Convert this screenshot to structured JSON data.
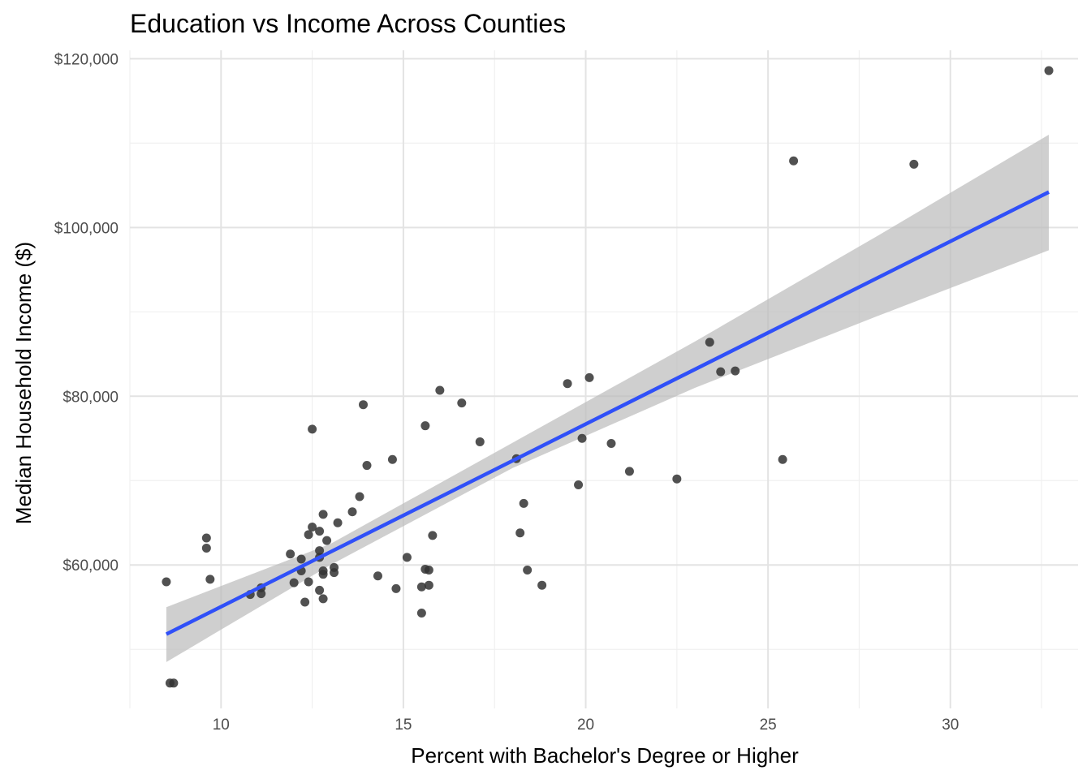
{
  "chart_data": {
    "type": "scatter",
    "title": "Education vs Income Across Counties",
    "xlabel": "Percent with Bachelor's Degree or Higher",
    "ylabel": "Median Household Income ($)",
    "xlim": [
      7.5,
      33.5
    ],
    "ylim": [
      43000,
      121000
    ],
    "x_ticks": [
      10,
      15,
      20,
      25,
      30
    ],
    "x_tick_labels": [
      "10",
      "15",
      "20",
      "25",
      "30"
    ],
    "y_ticks": [
      60000,
      80000,
      100000,
      120000
    ],
    "y_tick_labels": [
      "$60,000",
      "$80,000",
      "$100,000",
      "$120,000"
    ],
    "grid": true,
    "legend": "none",
    "colors": {
      "points": "#333333",
      "fit_line": "#3050f8",
      "confidence_band": "#bdbdbd"
    },
    "points": [
      {
        "x": 8.5,
        "y": 58000
      },
      {
        "x": 8.6,
        "y": 46000
      },
      {
        "x": 8.7,
        "y": 46000
      },
      {
        "x": 9.6,
        "y": 63200
      },
      {
        "x": 9.6,
        "y": 62000
      },
      {
        "x": 9.7,
        "y": 58300
      },
      {
        "x": 10.8,
        "y": 56500
      },
      {
        "x": 11.1,
        "y": 57300
      },
      {
        "x": 11.1,
        "y": 56600
      },
      {
        "x": 11.9,
        "y": 61300
      },
      {
        "x": 12.0,
        "y": 57900
      },
      {
        "x": 12.2,
        "y": 60700
      },
      {
        "x": 12.2,
        "y": 59300
      },
      {
        "x": 12.3,
        "y": 55600
      },
      {
        "x": 12.4,
        "y": 63600
      },
      {
        "x": 12.4,
        "y": 58000
      },
      {
        "x": 12.5,
        "y": 76100
      },
      {
        "x": 12.5,
        "y": 64500
      },
      {
        "x": 12.7,
        "y": 64000
      },
      {
        "x": 12.7,
        "y": 61700
      },
      {
        "x": 12.7,
        "y": 60900
      },
      {
        "x": 12.7,
        "y": 57000
      },
      {
        "x": 12.8,
        "y": 66000
      },
      {
        "x": 12.8,
        "y": 59300
      },
      {
        "x": 12.8,
        "y": 58900
      },
      {
        "x": 12.8,
        "y": 56000
      },
      {
        "x": 12.9,
        "y": 62900
      },
      {
        "x": 13.1,
        "y": 59700
      },
      {
        "x": 13.1,
        "y": 59100
      },
      {
        "x": 13.2,
        "y": 65000
      },
      {
        "x": 13.6,
        "y": 66300
      },
      {
        "x": 13.8,
        "y": 68100
      },
      {
        "x": 13.9,
        "y": 79000
      },
      {
        "x": 14.0,
        "y": 71800
      },
      {
        "x": 14.3,
        "y": 58700
      },
      {
        "x": 14.7,
        "y": 72500
      },
      {
        "x": 14.8,
        "y": 57200
      },
      {
        "x": 15.1,
        "y": 60900
      },
      {
        "x": 15.5,
        "y": 57400
      },
      {
        "x": 15.5,
        "y": 54300
      },
      {
        "x": 15.6,
        "y": 76500
      },
      {
        "x": 15.6,
        "y": 59500
      },
      {
        "x": 15.7,
        "y": 59400
      },
      {
        "x": 15.7,
        "y": 57600
      },
      {
        "x": 15.8,
        "y": 63500
      },
      {
        "x": 16.0,
        "y": 80700
      },
      {
        "x": 16.6,
        "y": 79200
      },
      {
        "x": 17.1,
        "y": 74600
      },
      {
        "x": 18.1,
        "y": 72600
      },
      {
        "x": 18.2,
        "y": 63800
      },
      {
        "x": 18.3,
        "y": 67300
      },
      {
        "x": 18.4,
        "y": 59400
      },
      {
        "x": 18.8,
        "y": 57600
      },
      {
        "x": 19.5,
        "y": 81500
      },
      {
        "x": 19.8,
        "y": 69500
      },
      {
        "x": 19.9,
        "y": 75000
      },
      {
        "x": 20.1,
        "y": 82200
      },
      {
        "x": 20.7,
        "y": 74400
      },
      {
        "x": 21.2,
        "y": 71100
      },
      {
        "x": 22.5,
        "y": 70200
      },
      {
        "x": 23.4,
        "y": 86400
      },
      {
        "x": 23.7,
        "y": 82900
      },
      {
        "x": 24.1,
        "y": 83000
      },
      {
        "x": 25.4,
        "y": 72500
      },
      {
        "x": 25.7,
        "y": 107900
      },
      {
        "x": 29.0,
        "y": 107500
      },
      {
        "x": 32.7,
        "y": 118600
      }
    ],
    "fit_line": {
      "x": [
        8.5,
        32.7
      ],
      "y": [
        51800,
        104200
      ]
    },
    "confidence_band": {
      "x": [
        8.5,
        13,
        18,
        23,
        28,
        32.7
      ],
      "lower": [
        48500,
        60000,
        71500,
        81000,
        89500,
        97300
      ],
      "upper": [
        55000,
        62500,
        74500,
        86500,
        99000,
        111000
      ]
    }
  }
}
